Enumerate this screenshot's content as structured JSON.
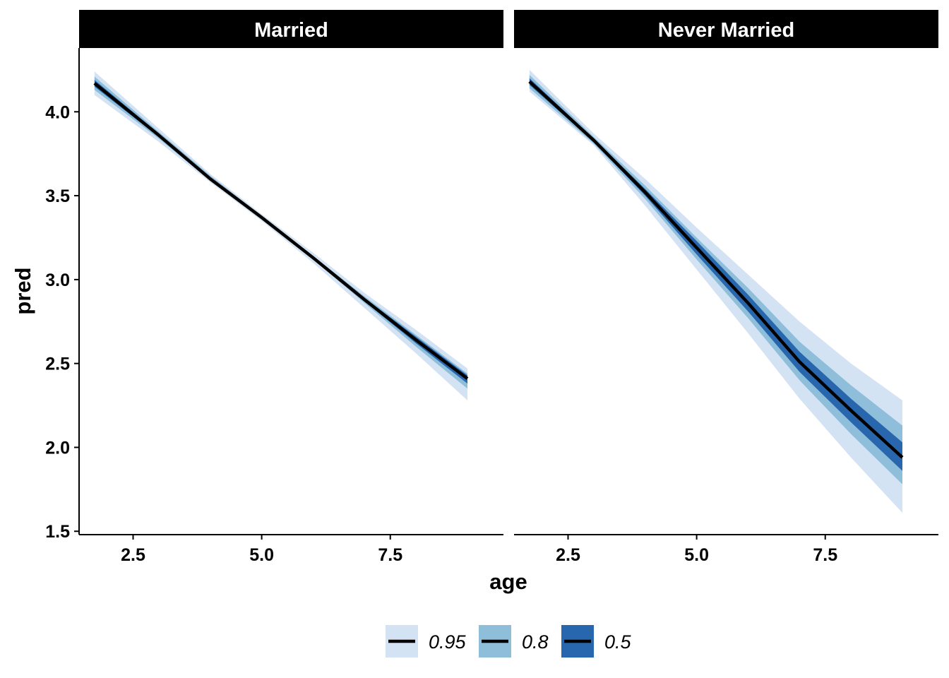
{
  "chart_data": {
    "type": "line",
    "xlabel": "age",
    "ylabel": "pred",
    "xlim": [
      1.45,
      9.7
    ],
    "ylim": [
      1.48,
      4.38
    ],
    "x_ticks": [
      {
        "value": 2.5,
        "label": "2.5"
      },
      {
        "value": 5.0,
        "label": "5.0"
      },
      {
        "value": 7.5,
        "label": "7.5"
      }
    ],
    "y_ticks": [
      {
        "value": 1.5,
        "label": "1.5"
      },
      {
        "value": 2.0,
        "label": "2.0"
      },
      {
        "value": 2.5,
        "label": "2.5"
      },
      {
        "value": 3.0,
        "label": "3.0"
      },
      {
        "value": 3.5,
        "label": "3.5"
      },
      {
        "value": 4.0,
        "label": "4.0"
      }
    ],
    "grid": false,
    "legend_position": "bottom",
    "colors": {
      "band_0.95": "#d4e3f3",
      "band_0.8": "#8fbedb",
      "band_0.5": "#2867ad",
      "line": "#000000"
    },
    "legend": [
      {
        "key": "0.95",
        "label": "0.95"
      },
      {
        "key": "0.8",
        "label": "0.8"
      },
      {
        "key": "0.5",
        "label": "0.5"
      }
    ],
    "panels": [
      {
        "title": "Married",
        "x": [
          1.75,
          3.0,
          4.0,
          5.0,
          6.0,
          7.0,
          8.0,
          9.0
        ],
        "pred": [
          4.17,
          3.86,
          3.6,
          3.37,
          3.13,
          2.88,
          2.64,
          2.41
        ],
        "bands": [
          {
            "level": "0.95",
            "lower": [
              4.1,
              3.82,
              3.58,
              3.35,
              3.1,
              2.83,
              2.56,
              2.28
            ],
            "upper": [
              4.24,
              3.9,
              3.63,
              3.39,
              3.16,
              2.92,
              2.7,
              2.47
            ]
          },
          {
            "level": "0.8",
            "lower": [
              4.13,
              3.84,
              3.59,
              3.36,
              3.12,
              2.86,
              2.6,
              2.35
            ],
            "upper": [
              4.21,
              3.88,
              3.62,
              3.38,
              3.14,
              2.9,
              2.67,
              2.44
            ]
          },
          {
            "level": "0.5",
            "lower": [
              4.15,
              3.85,
              3.6,
              3.365,
              3.125,
              2.87,
              2.62,
              2.38
            ],
            "upper": [
              4.19,
              3.87,
              3.61,
              3.375,
              3.135,
              2.89,
              2.66,
              2.43
            ]
          }
        ]
      },
      {
        "title": "Never Married",
        "x": [
          1.75,
          3.0,
          4.0,
          5.0,
          6.0,
          7.0,
          8.0,
          9.0
        ],
        "pred": [
          4.18,
          3.83,
          3.52,
          3.19,
          2.86,
          2.51,
          2.22,
          1.94
        ],
        "bands": [
          {
            "level": "0.95",
            "lower": [
              4.12,
              3.8,
              3.44,
              3.06,
              2.68,
              2.29,
              1.94,
              1.61
            ],
            "upper": [
              4.25,
              3.87,
              3.6,
              3.31,
              3.03,
              2.75,
              2.5,
              2.28
            ]
          },
          {
            "level": "0.8",
            "lower": [
              4.14,
              3.81,
              3.48,
              3.12,
              2.77,
              2.4,
              2.08,
              1.78
            ],
            "upper": [
              4.22,
              3.85,
              3.56,
              3.25,
              2.95,
              2.63,
              2.37,
              2.13
            ]
          },
          {
            "level": "0.5",
            "lower": [
              4.16,
              3.82,
              3.5,
              3.15,
              2.81,
              2.45,
              2.15,
              1.86
            ],
            "upper": [
              4.2,
              3.84,
              3.54,
              3.23,
              2.91,
              2.57,
              2.29,
              2.03
            ]
          }
        ]
      }
    ]
  }
}
